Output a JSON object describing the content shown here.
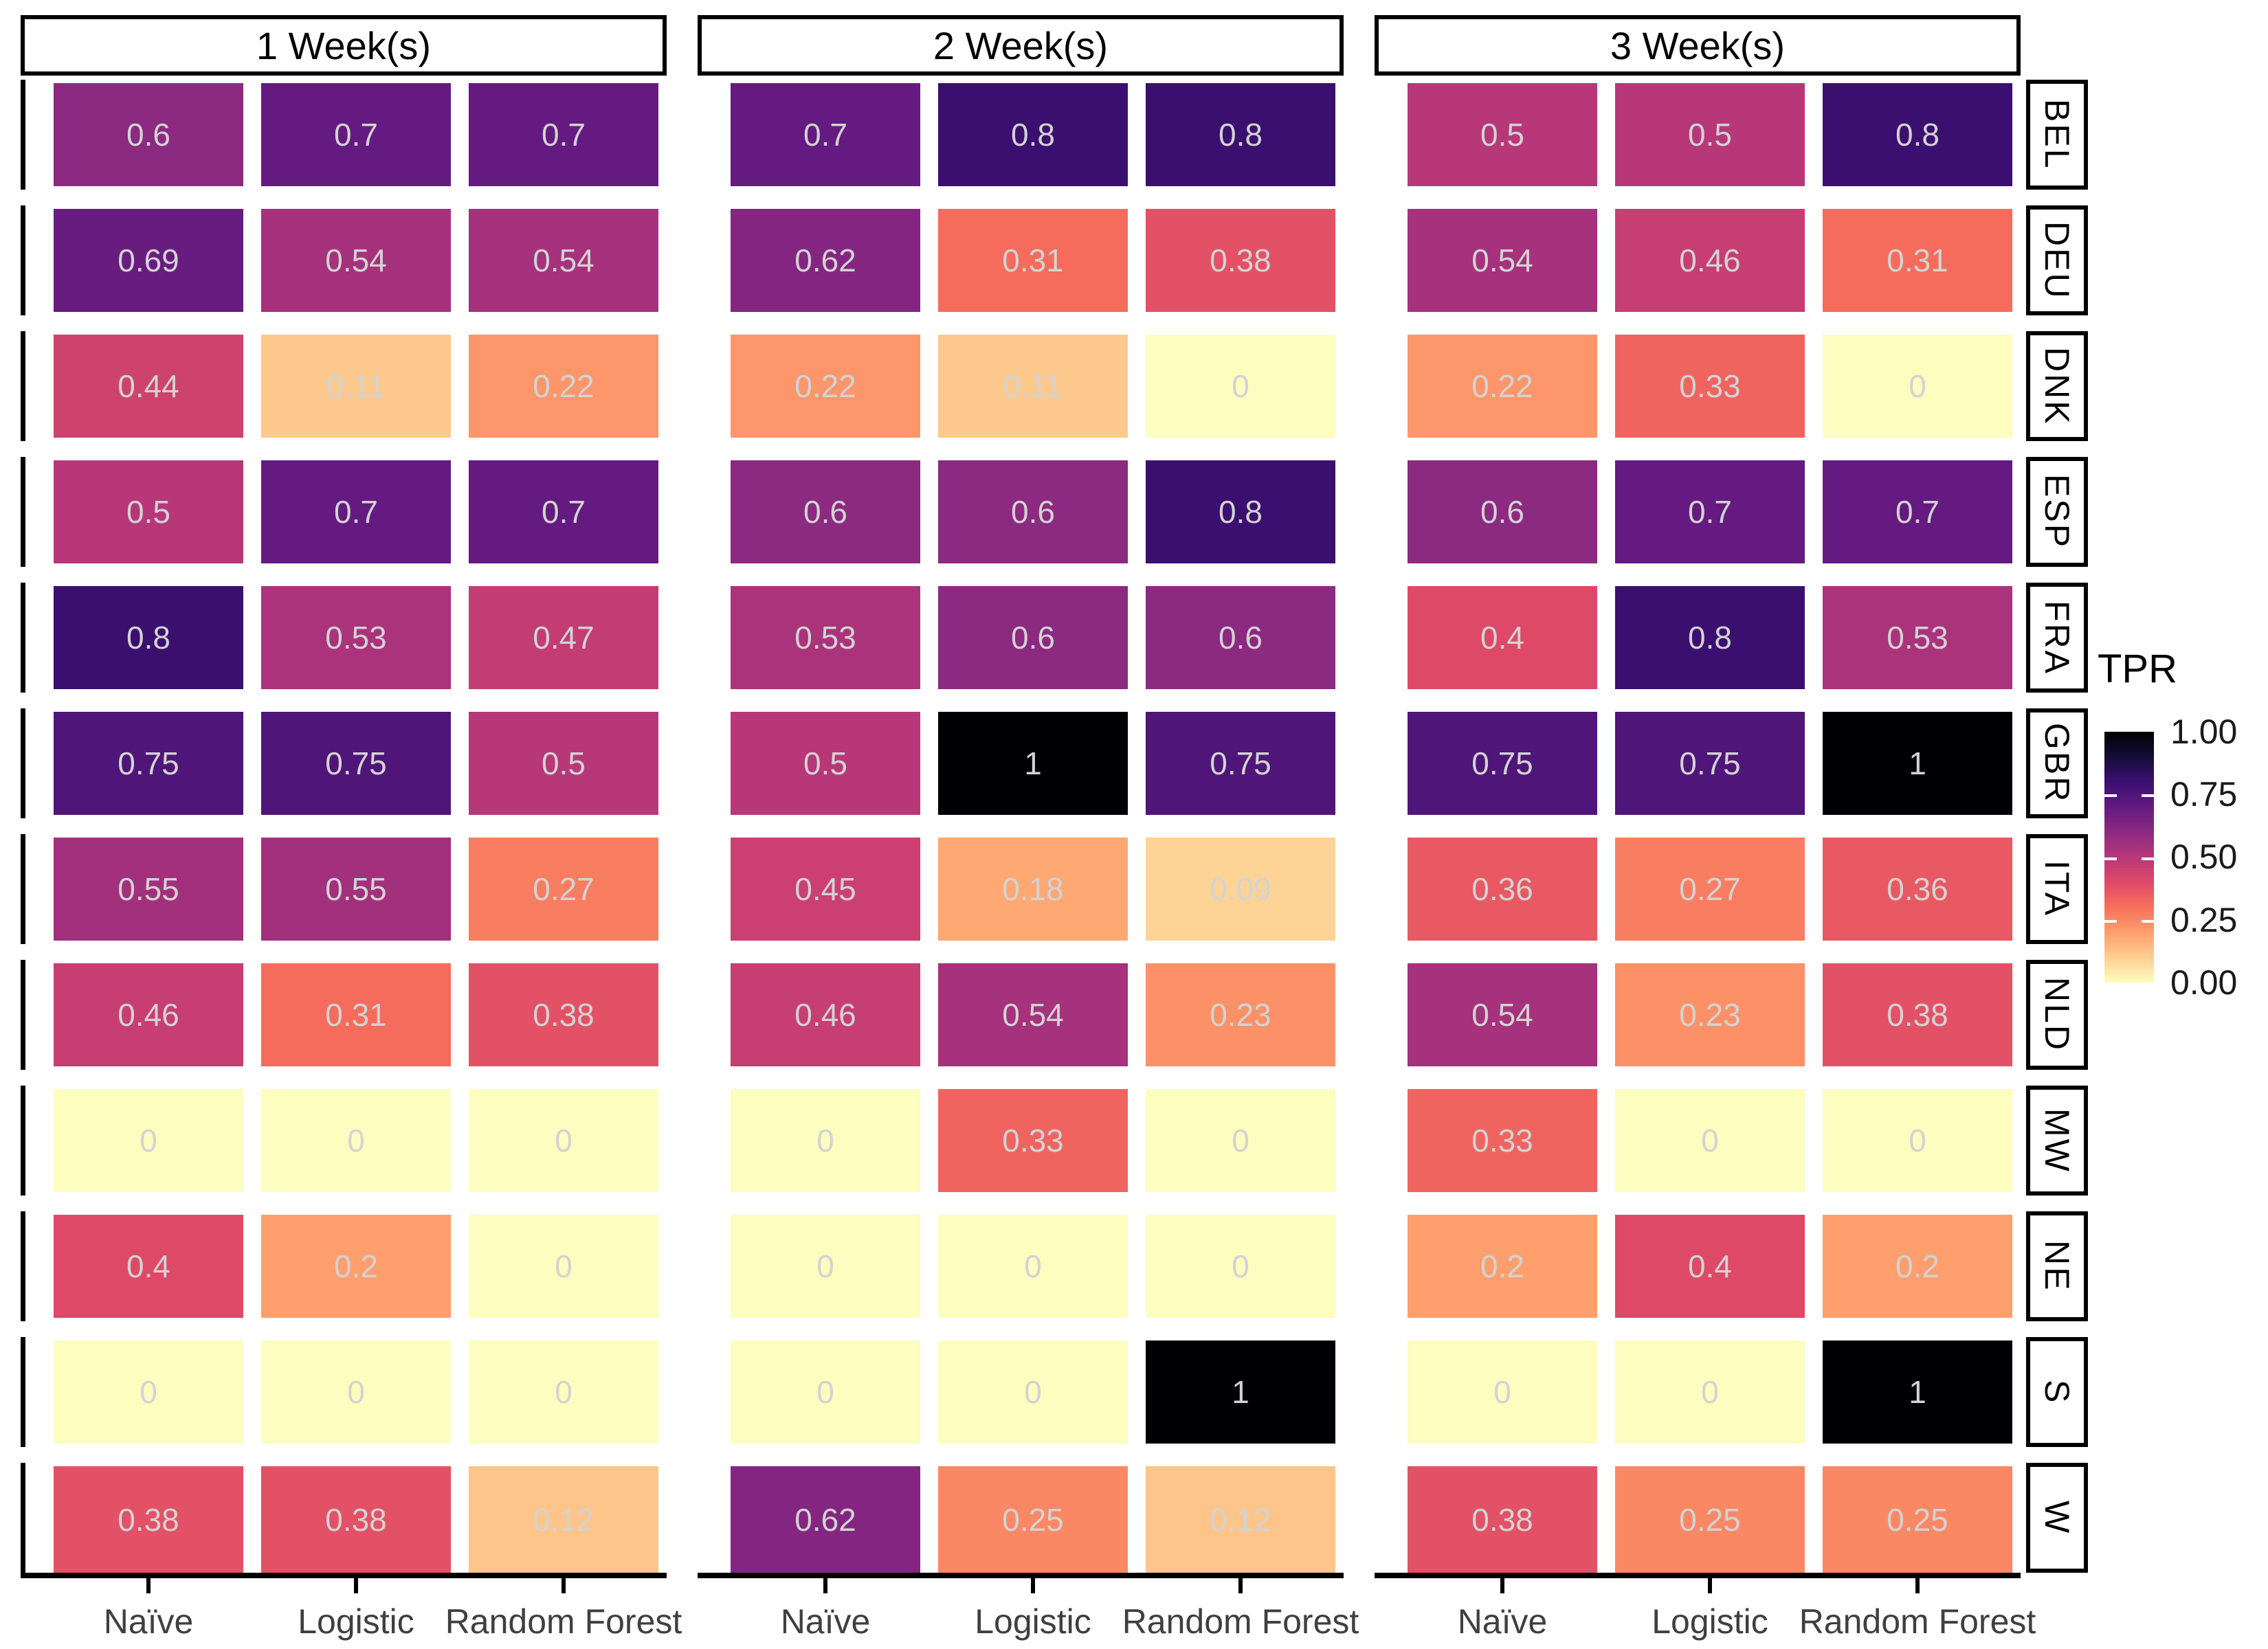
{
  "chart_data": {
    "type": "heatmap",
    "title": "",
    "facet_cols": [
      "1 Week(s)",
      "2 Week(s)",
      "3 Week(s)"
    ],
    "facet_rows": [
      "BEL",
      "DEU",
      "DNK",
      "ESP",
      "FRA",
      "GBR",
      "ITA",
      "NLD",
      "MW",
      "NE",
      "S",
      "W"
    ],
    "x_categories": [
      "Naïve",
      "Logistic",
      "Random Forest"
    ],
    "legend": {
      "title": "TPR",
      "tick_labels": [
        "1.00",
        "0.75",
        "0.50",
        "0.25",
        "0.00"
      ],
      "limits": [
        0,
        1
      ],
      "position": "right"
    },
    "colorscale": {
      "name": "magma-reversed",
      "stops": [
        "#FCFDBF",
        "#FECE91",
        "#FE9F6D",
        "#F7705C",
        "#DE4968",
        "#B73779",
        "#8C2981",
        "#641A80",
        "#3B0F70",
        "#140E36",
        "#000004"
      ]
    },
    "panels": [
      {
        "label": "1 Week(s)",
        "rows": [
          [
            0.6,
            0.7,
            0.7
          ],
          [
            0.69,
            0.54,
            0.54
          ],
          [
            0.44,
            0.11,
            0.22
          ],
          [
            0.5,
            0.7,
            0.7
          ],
          [
            0.8,
            0.53,
            0.47
          ],
          [
            0.75,
            0.75,
            0.5
          ],
          [
            0.55,
            0.55,
            0.27
          ],
          [
            0.46,
            0.31,
            0.38
          ],
          [
            0,
            0,
            0
          ],
          [
            0.4,
            0.2,
            0
          ],
          [
            0,
            0,
            0
          ],
          [
            0.38,
            0.38,
            0.12
          ]
        ]
      },
      {
        "label": "2 Week(s)",
        "rows": [
          [
            0.7,
            0.8,
            0.8
          ],
          [
            0.62,
            0.31,
            0.38
          ],
          [
            0.22,
            0.11,
            0
          ],
          [
            0.6,
            0.6,
            0.8
          ],
          [
            0.53,
            0.6,
            0.6
          ],
          [
            0.5,
            1,
            0.75
          ],
          [
            0.45,
            0.18,
            0.09
          ],
          [
            0.46,
            0.54,
            0.23
          ],
          [
            0,
            0.33,
            0
          ],
          [
            0,
            0,
            0
          ],
          [
            0,
            0,
            1
          ],
          [
            0.62,
            0.25,
            0.12
          ]
        ]
      },
      {
        "label": "3 Week(s)",
        "rows": [
          [
            0.5,
            0.5,
            0.8
          ],
          [
            0.54,
            0.46,
            0.31
          ],
          [
            0.22,
            0.33,
            0
          ],
          [
            0.6,
            0.7,
            0.7
          ],
          [
            0.4,
            0.8,
            0.53
          ],
          [
            0.75,
            0.75,
            1
          ],
          [
            0.36,
            0.27,
            0.36
          ],
          [
            0.54,
            0.23,
            0.38
          ],
          [
            0.33,
            0,
            0
          ],
          [
            0.2,
            0.4,
            0.2
          ],
          [
            0,
            0,
            1
          ],
          [
            0.38,
            0.25,
            0.25
          ]
        ]
      }
    ]
  },
  "style": {
    "cell_text_color": "#d3d3d3",
    "axis_text_color": "#3f3f3f",
    "strip_border_color": "#000000",
    "background_color": "#ffffff"
  }
}
